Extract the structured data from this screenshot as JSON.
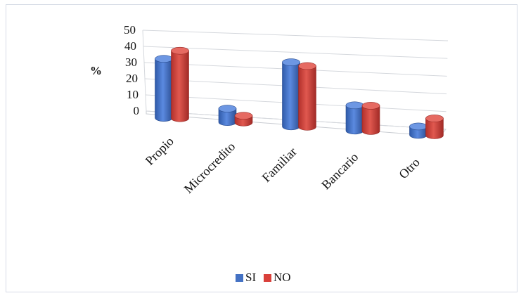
{
  "chart_data": {
    "type": "bar",
    "title": "",
    "xlabel": "",
    "ylabel": "%",
    "ylim": [
      0,
      50
    ],
    "yticks": [
      "0",
      "10",
      "20",
      "30",
      "40",
      "50"
    ],
    "grid": true,
    "legend_position": "bottom",
    "categories": [
      "Propio",
      "Microcredito",
      "Familiar",
      "Bancario",
      "Otro"
    ],
    "series": [
      {
        "name": "SI",
        "values": [
          35,
          8,
          38,
          15,
          5
        ],
        "color": "#4472C4"
      },
      {
        "name": "NO",
        "values": [
          40,
          4,
          36,
          15,
          10
        ],
        "color": "#D9403A"
      }
    ]
  }
}
